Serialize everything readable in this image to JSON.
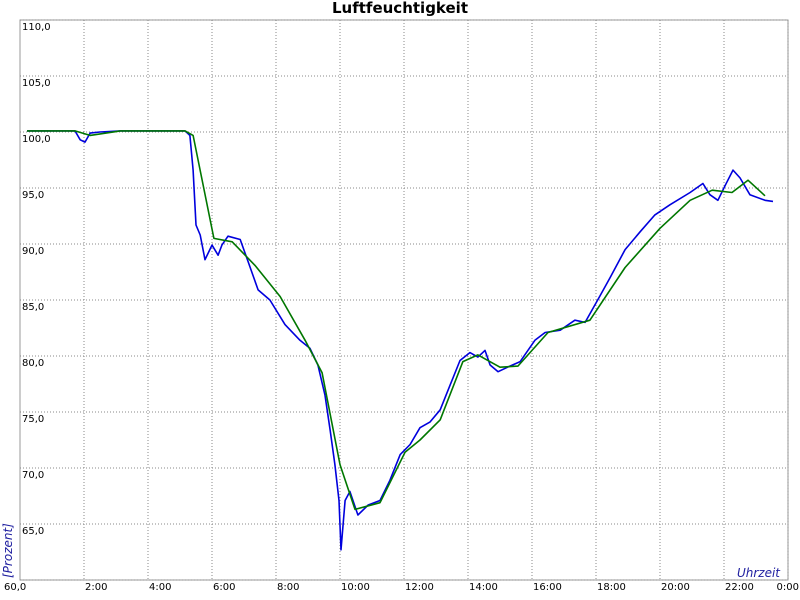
{
  "chart_data": {
    "type": "line",
    "title": "Luftfeuchtigkeit",
    "y_label": "[Prozent]",
    "x_label": "Uhrzeit",
    "xlim": [
      0,
      24
    ],
    "ylim": [
      60,
      110
    ],
    "grid": true,
    "xticks": [
      {
        "value": 2,
        "label": "2:00"
      },
      {
        "value": 4,
        "label": "4:00"
      },
      {
        "value": 6,
        "label": "6:00"
      },
      {
        "value": 8,
        "label": "8:00"
      },
      {
        "value": 10,
        "label": "10:00"
      },
      {
        "value": 12,
        "label": "12:00"
      },
      {
        "value": 14,
        "label": "14:00"
      },
      {
        "value": 16,
        "label": "16:00"
      },
      {
        "value": 18,
        "label": "18:00"
      },
      {
        "value": 20,
        "label": "20:00"
      },
      {
        "value": 22,
        "label": "22:00"
      },
      {
        "value": 24,
        "label": "0:00"
      }
    ],
    "yticks": [
      {
        "value": 60,
        "label": "60,0"
      },
      {
        "value": 65,
        "label": "65,0"
      },
      {
        "value": 70,
        "label": "70,0"
      },
      {
        "value": 75,
        "label": "75,0"
      },
      {
        "value": 80,
        "label": "80,0"
      },
      {
        "value": 85,
        "label": "85,0"
      },
      {
        "value": 90,
        "label": "90,0"
      },
      {
        "value": 95,
        "label": "95,0"
      },
      {
        "value": 100,
        "label": "100,0"
      },
      {
        "value": 105,
        "label": "105,0"
      },
      {
        "value": 110,
        "label": "110,0"
      }
    ],
    "series": [
      {
        "color": "#0000dd",
        "x": [
          0.22,
          1.72,
          1.88,
          2.03,
          2.19,
          2.5,
          3.13,
          5.16,
          5.31,
          5.41,
          5.5,
          5.63,
          5.78,
          6.0,
          6.19,
          6.31,
          6.5,
          6.88,
          7.13,
          7.44,
          7.81,
          8.28,
          8.75,
          9.06,
          9.31,
          9.53,
          9.69,
          9.84,
          9.97,
          10.03,
          10.16,
          10.31,
          10.56,
          10.88,
          11.25,
          11.56,
          11.88,
          12.19,
          12.5,
          12.81,
          13.13,
          13.44,
          13.75,
          14.06,
          14.31,
          14.53,
          14.69,
          14.94,
          15.31,
          15.63,
          16.09,
          16.41,
          16.88,
          17.34,
          17.66,
          18.13,
          18.44,
          18.91,
          19.38,
          19.84,
          20.31,
          20.94,
          21.34,
          21.56,
          21.81,
          22.03,
          22.28,
          22.5,
          22.81,
          23.28,
          23.53
        ],
        "values": [
          100.1,
          100.1,
          99.3,
          99.1,
          99.9,
          100,
          100.1,
          100.1,
          99.7,
          96.6,
          91.7,
          90.8,
          88.6,
          89.9,
          89.0,
          89.9,
          90.7,
          90.4,
          88.4,
          85.9,
          85.0,
          82.8,
          81.4,
          80.7,
          79.2,
          76.5,
          73.4,
          70.3,
          67.1,
          62.7,
          67.1,
          67.9,
          65.8,
          66.7,
          67.1,
          68.9,
          71.2,
          72.1,
          73.6,
          74.1,
          75.2,
          77.4,
          79.6,
          80.3,
          79.9,
          80.5,
          79.2,
          78.6,
          79.1,
          79.5,
          81.4,
          82.1,
          82.3,
          83.2,
          83.0,
          85.4,
          87.0,
          89.5,
          91.1,
          92.6,
          93.5,
          94.6,
          95.4,
          94.4,
          93.9,
          95.2,
          96.6,
          95.9,
          94.4,
          93.9,
          93.8
        ]
      },
      {
        "color": "#007700",
        "x": [
          0.22,
          1.72,
          2.19,
          3.13,
          5.16,
          5.41,
          6.06,
          6.63,
          7.34,
          8.13,
          8.91,
          9.44,
          10.0,
          10.47,
          11.25,
          12.03,
          12.5,
          13.13,
          13.84,
          14.31,
          15.0,
          15.56,
          16.5,
          17.81,
          18.91,
          20.0,
          20.94,
          21.63,
          22.25,
          22.75,
          23.28
        ],
        "values": [
          100.1,
          100.1,
          99.7,
          100.1,
          100.1,
          99.7,
          90.5,
          90.2,
          88.1,
          85.3,
          81.4,
          78.5,
          70.3,
          66.3,
          66.9,
          71.4,
          72.5,
          74.3,
          79.5,
          80.1,
          79.0,
          79.1,
          82.1,
          83.2,
          87.9,
          91.4,
          93.9,
          94.8,
          94.6,
          95.7,
          94.3
        ]
      }
    ]
  }
}
